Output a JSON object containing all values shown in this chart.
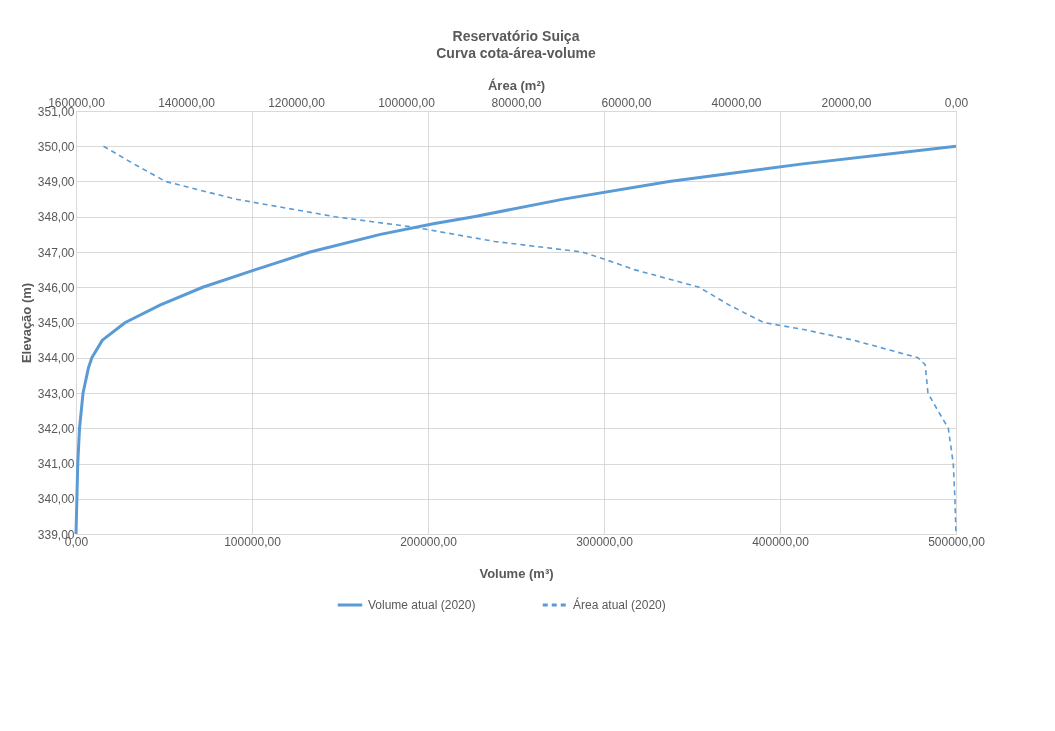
{
  "chart_data": {
    "type": "line",
    "title": "Reservatório Suiça",
    "subtitle": "Curva cota-área-volume",
    "xlabel": "Volume (m³)",
    "x2label": "Área (m²)",
    "ylabel": "Elevação (m)",
    "xlim": [
      0,
      500000
    ],
    "xticks": [
      {
        "value": 0,
        "label": "0,00"
      },
      {
        "value": 100000,
        "label": "100000,00"
      },
      {
        "value": 200000,
        "label": "200000,00"
      },
      {
        "value": 300000,
        "label": "300000,00"
      },
      {
        "value": 400000,
        "label": "400000,00"
      },
      {
        "value": 500000,
        "label": "500000,00"
      }
    ],
    "x2lim": [
      160000,
      0
    ],
    "x2ticks": [
      {
        "value": 160000,
        "label": "160000,00"
      },
      {
        "value": 140000,
        "label": "140000,00"
      },
      {
        "value": 120000,
        "label": "120000,00"
      },
      {
        "value": 100000,
        "label": "100000,00"
      },
      {
        "value": 80000,
        "label": "80000,00"
      },
      {
        "value": 60000,
        "label": "60000,00"
      },
      {
        "value": 40000,
        "label": "40000,00"
      },
      {
        "value": 20000,
        "label": "20000,00"
      },
      {
        "value": 0,
        "label": "0,00"
      }
    ],
    "ylim": [
      339,
      351
    ],
    "yticks": [
      {
        "value": 339,
        "label": "339,00"
      },
      {
        "value": 340,
        "label": "340,00"
      },
      {
        "value": 341,
        "label": "341,00"
      },
      {
        "value": 342,
        "label": "342,00"
      },
      {
        "value": 343,
        "label": "343,00"
      },
      {
        "value": 344,
        "label": "344,00"
      },
      {
        "value": 345,
        "label": "345,00"
      },
      {
        "value": 346,
        "label": "346,00"
      },
      {
        "value": 347,
        "label": "347,00"
      },
      {
        "value": 348,
        "label": "348,00"
      },
      {
        "value": 349,
        "label": "349,00"
      },
      {
        "value": 350,
        "label": "350,00"
      },
      {
        "value": 351,
        "label": "351,00"
      }
    ],
    "grid": true,
    "legend": "bottom",
    "series": [
      {
        "name": "Volume atual (2020)",
        "color": "#5b9bd5",
        "line_style": "solid",
        "x": [
          0,
          500,
          1000,
          2000,
          4000,
          7000,
          9000,
          15000,
          28000,
          48000,
          72000,
          102000,
          133000,
          173000,
          203000,
          226000,
          277000,
          337000,
          413000,
          500000
        ],
        "values": [
          339,
          340,
          341,
          342,
          343,
          343.7,
          344,
          344.5,
          345,
          345.5,
          346,
          346.5,
          347,
          347.5,
          347.8,
          348,
          348.5,
          349,
          349.5,
          350
        ]
      },
      {
        "name": "Área atual (2020)",
        "color": "#5b9bd5",
        "line_style": "dashed",
        "axis": "x2",
        "x": [
          155000,
          149500,
          143700,
          131000,
          112900,
          98400,
          83900,
          68000,
          64000,
          58500,
          46700,
          41300,
          35000,
          27700,
          18700,
          6900,
          5600,
          5100,
          3300,
          1400,
          500,
          200,
          0
        ],
        "values": [
          350,
          349.5,
          349,
          348.5,
          348,
          347.7,
          347.3,
          347,
          346.8,
          346.5,
          346,
          345.5,
          345,
          344.8,
          344.5,
          344,
          343.8,
          343,
          342.5,
          342,
          341,
          340,
          339
        ]
      }
    ]
  }
}
